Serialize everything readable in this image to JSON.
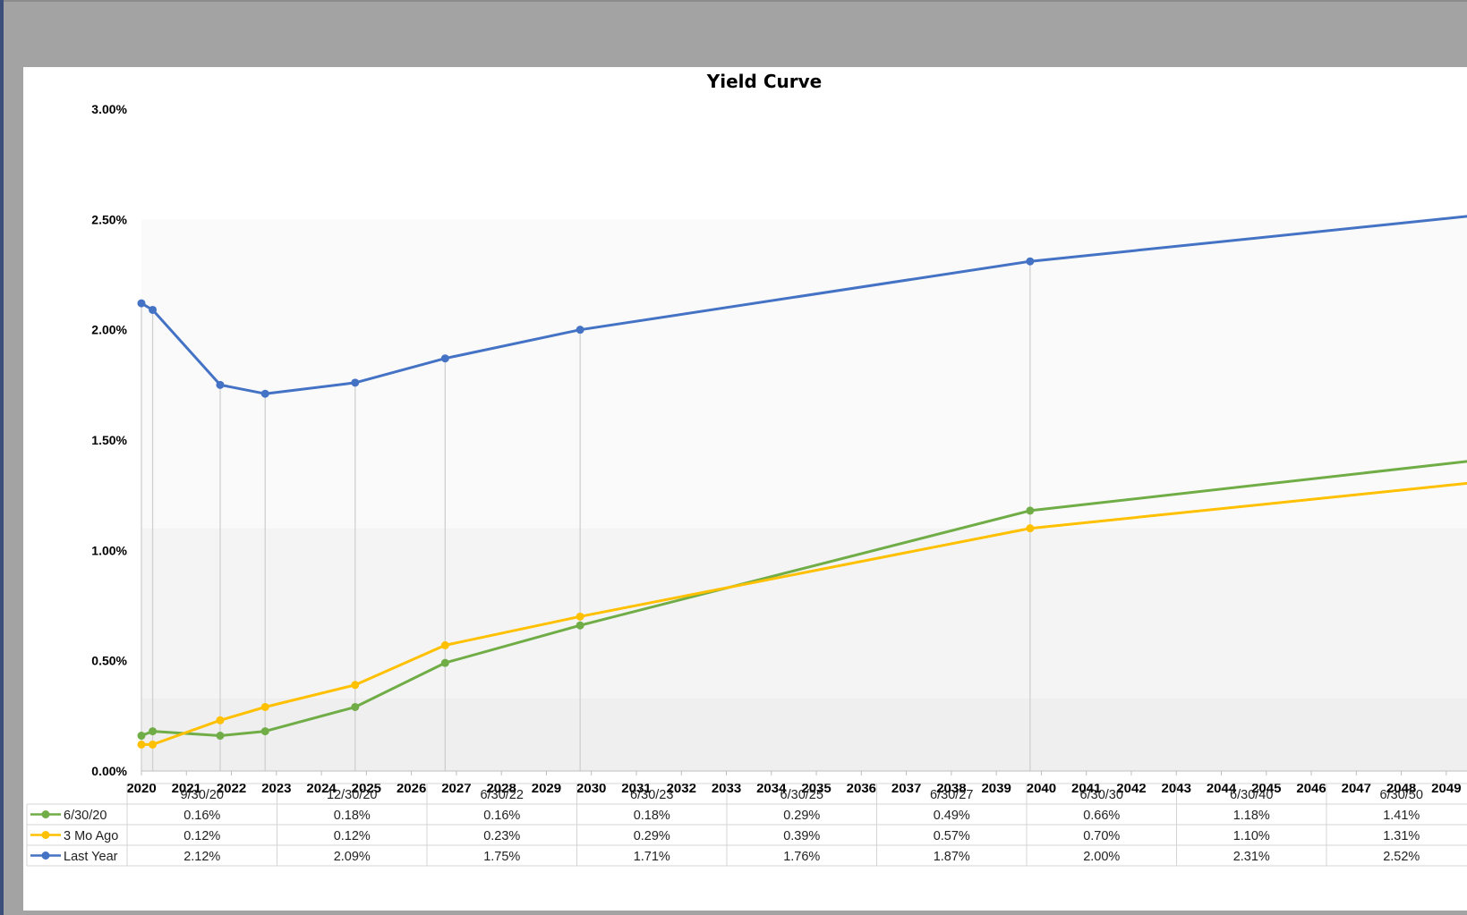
{
  "chart_data": {
    "type": "line",
    "title": "Yield Curve",
    "xlabel": "",
    "ylabel": "",
    "ylim": [
      0,
      3
    ],
    "xlim": [
      2020.0,
      2049.5
    ],
    "y_ticks": [
      "0.00%",
      "0.50%",
      "1.00%",
      "1.50%",
      "2.00%",
      "2.50%",
      "3.00%"
    ],
    "x_ticks": [
      "2020",
      "2021",
      "2022",
      "2023",
      "2024",
      "2025",
      "2026",
      "2027",
      "2028",
      "2029",
      "2030",
      "2031",
      "2032",
      "2033",
      "2034",
      "2035",
      "2036",
      "2037",
      "2038",
      "2039",
      "2040",
      "2041",
      "2042",
      "2043",
      "2044",
      "2045",
      "2046",
      "2047",
      "2048",
      "2049"
    ],
    "x_tick_years": [
      2020,
      2021,
      2022,
      2023,
      2024,
      2025,
      2026,
      2027,
      2028,
      2029,
      2030,
      2031,
      2032,
      2033,
      2034,
      2035,
      2036,
      2037,
      2038,
      2039,
      2040,
      2041,
      2042,
      2043,
      2044,
      2045,
      2046,
      2047,
      2048,
      2049
    ],
    "table_headers": [
      "9/30/20",
      "12/30/20",
      "6/30/22",
      "6/30/23",
      "6/30/25",
      "6/30/27",
      "6/30/30",
      "6/30/40",
      "6/30/50"
    ],
    "x_dates": [
      2020.0,
      2020.25,
      2021.75,
      2022.75,
      2024.75,
      2026.75,
      2029.75,
      2039.75,
      2049.75
    ],
    "series": [
      {
        "name": "6/30/20",
        "color": "#70ad47",
        "values": [
          0.16,
          0.18,
          0.16,
          0.18,
          0.29,
          0.49,
          0.66,
          1.18,
          1.41
        ],
        "labels": [
          "0.16%",
          "0.18%",
          "0.16%",
          "0.18%",
          "0.29%",
          "0.49%",
          "0.66%",
          "1.18%",
          "1.41%"
        ]
      },
      {
        "name": "3 Mo Ago",
        "color": "#ffc000",
        "values": [
          0.12,
          0.12,
          0.23,
          0.29,
          0.39,
          0.57,
          0.7,
          1.1,
          1.31
        ],
        "labels": [
          "0.12%",
          "0.12%",
          "0.23%",
          "0.29%",
          "0.39%",
          "0.57%",
          "0.70%",
          "1.10%",
          "1.31%"
        ]
      },
      {
        "name": "Last Year",
        "color": "#4472c4",
        "values": [
          2.12,
          2.09,
          1.75,
          1.71,
          1.76,
          1.87,
          2.0,
          2.31,
          2.52
        ],
        "labels": [
          "2.12%",
          "2.09%",
          "1.75%",
          "1.71%",
          "1.76%",
          "1.87%",
          "2.00%",
          "2.31%",
          "2.52%"
        ]
      }
    ]
  }
}
